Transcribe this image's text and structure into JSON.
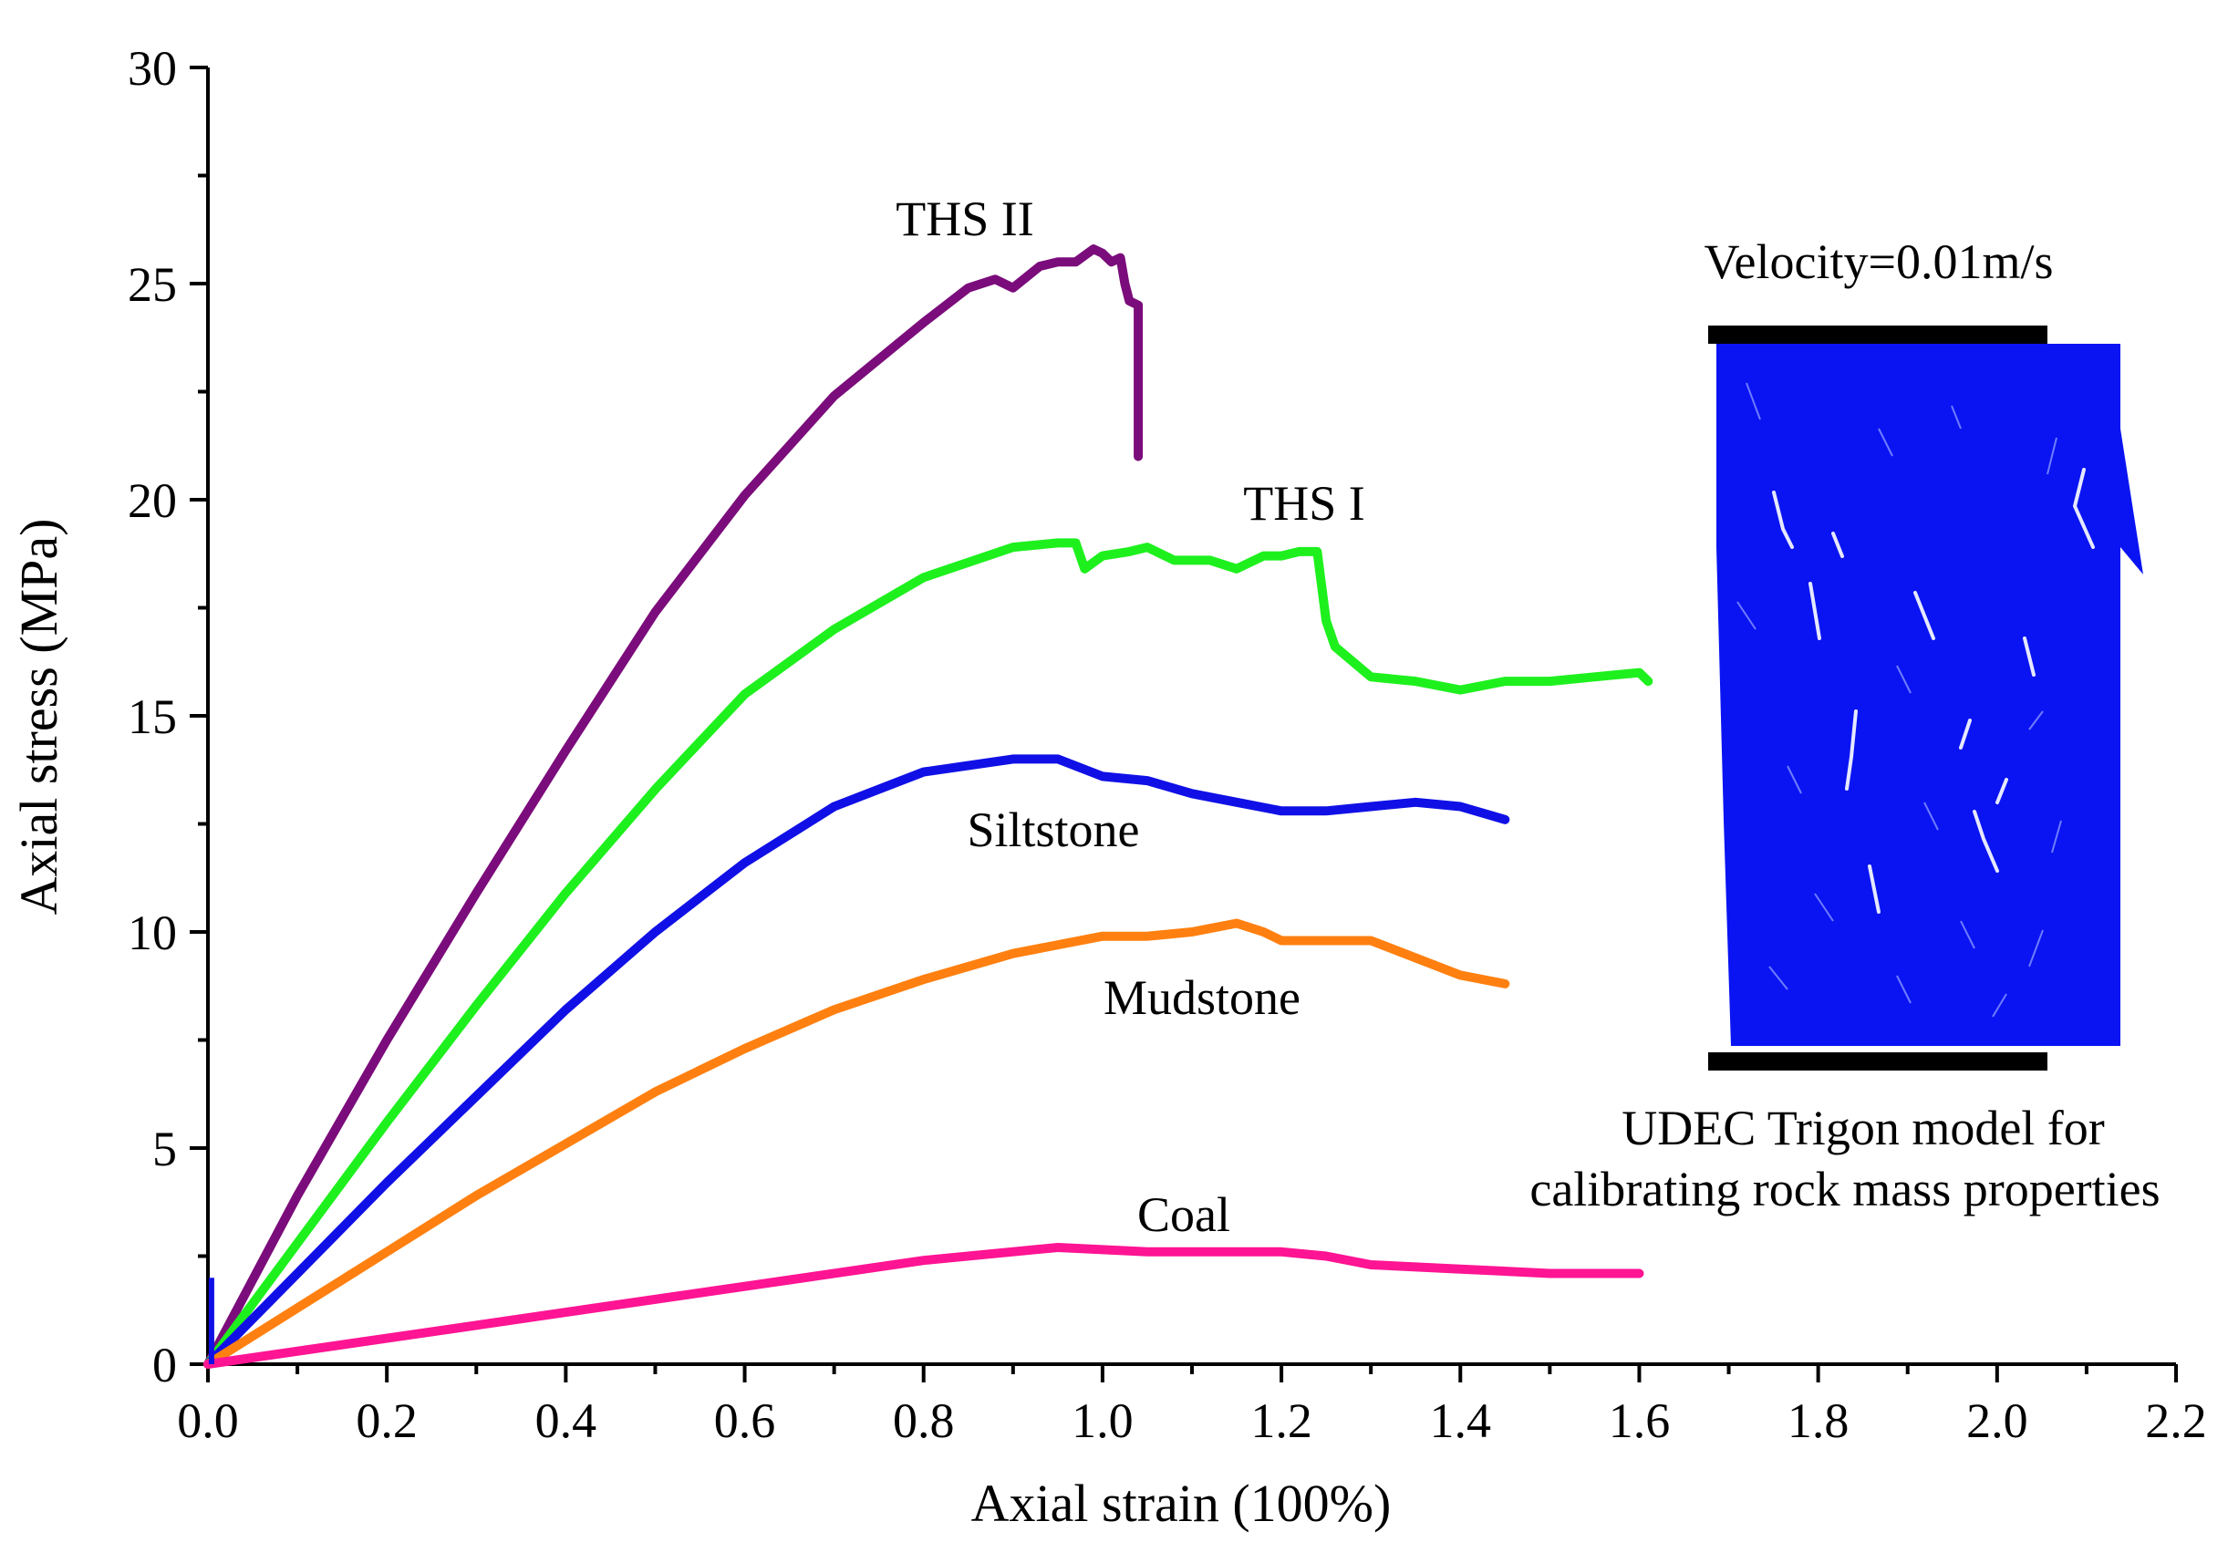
{
  "chart_data": {
    "type": "line",
    "xlabel": "Axial strain (100%)",
    "ylabel": "Axial stress  (MPa)",
    "xlim": [
      0,
      2.2
    ],
    "ylim": [
      0,
      30
    ],
    "x_ticks": [
      "0.0",
      "0.2",
      "0.4",
      "0.6",
      "0.8",
      "1.0",
      "1.2",
      "1.4",
      "1.6",
      "1.8",
      "2.0",
      "2.2"
    ],
    "y_ticks": [
      "0",
      "5",
      "10",
      "15",
      "20",
      "25",
      "30"
    ],
    "x_tick_values": [
      0,
      0.2,
      0.4,
      0.6,
      0.8,
      1.0,
      1.2,
      1.4,
      1.6,
      1.8,
      2.0,
      2.2
    ],
    "y_tick_values": [
      0,
      5,
      10,
      15,
      20,
      25,
      30
    ],
    "series": [
      {
        "name": "THS II",
        "color": "#7b0c7b",
        "x": [
          0,
          0.1,
          0.2,
          0.3,
          0.4,
          0.5,
          0.6,
          0.7,
          0.8,
          0.85,
          0.88,
          0.9,
          0.93,
          0.95,
          0.97,
          0.99,
          1.0,
          1.01,
          1.02,
          1.025,
          1.03,
          1.04,
          1.04
        ],
        "y": [
          0,
          3.9,
          7.5,
          10.9,
          14.2,
          17.4,
          20.1,
          22.4,
          24.1,
          24.9,
          25.1,
          24.9,
          25.4,
          25.5,
          25.5,
          25.8,
          25.7,
          25.5,
          25.6,
          25.0,
          24.6,
          24.5,
          21.0
        ]
      },
      {
        "name": "THS I",
        "color": "#1ef01e",
        "x": [
          0,
          0.1,
          0.2,
          0.3,
          0.4,
          0.5,
          0.6,
          0.7,
          0.8,
          0.9,
          0.95,
          0.97,
          0.98,
          1.0,
          1.03,
          1.05,
          1.08,
          1.12,
          1.15,
          1.18,
          1.2,
          1.22,
          1.24,
          1.25,
          1.26,
          1.3,
          1.35,
          1.4,
          1.45,
          1.5,
          1.55,
          1.6,
          1.61
        ],
        "y": [
          0,
          2.8,
          5.6,
          8.3,
          10.9,
          13.3,
          15.5,
          17.0,
          18.2,
          18.9,
          19.0,
          19.0,
          18.4,
          18.7,
          18.8,
          18.9,
          18.6,
          18.6,
          18.4,
          18.7,
          18.7,
          18.8,
          18.8,
          17.2,
          16.6,
          15.9,
          15.8,
          15.6,
          15.8,
          15.8,
          15.9,
          16.0,
          15.8
        ]
      },
      {
        "name": "Siltstone",
        "color": "#1010e6",
        "x": [
          0,
          0.1,
          0.2,
          0.3,
          0.4,
          0.5,
          0.6,
          0.7,
          0.8,
          0.9,
          0.95,
          1.0,
          1.05,
          1.1,
          1.15,
          1.2,
          1.25,
          1.3,
          1.35,
          1.4,
          1.45
        ],
        "y": [
          0,
          2.1,
          4.2,
          6.2,
          8.2,
          10.0,
          11.6,
          12.9,
          13.7,
          14.0,
          14.0,
          13.6,
          13.5,
          13.2,
          13.0,
          12.8,
          12.8,
          12.9,
          13.0,
          12.9,
          12.6
        ]
      },
      {
        "name": "Mudstone",
        "color": "#ff8010",
        "x": [
          0,
          0.1,
          0.2,
          0.3,
          0.4,
          0.5,
          0.6,
          0.7,
          0.8,
          0.9,
          1.0,
          1.05,
          1.1,
          1.15,
          1.18,
          1.2,
          1.25,
          1.3,
          1.35,
          1.4,
          1.45
        ],
        "y": [
          0,
          1.3,
          2.6,
          3.9,
          5.1,
          6.3,
          7.3,
          8.2,
          8.9,
          9.5,
          9.9,
          9.9,
          10.0,
          10.2,
          10.0,
          9.8,
          9.8,
          9.8,
          9.4,
          9.0,
          8.8
        ]
      },
      {
        "name": "Coal",
        "color": "#ff1493",
        "x": [
          0,
          0.2,
          0.4,
          0.6,
          0.8,
          0.95,
          1.05,
          1.1,
          1.2,
          1.25,
          1.3,
          1.4,
          1.5,
          1.6
        ],
        "y": [
          0,
          0.6,
          1.2,
          1.8,
          2.4,
          2.7,
          2.6,
          2.6,
          2.6,
          2.5,
          2.3,
          2.2,
          2.1,
          2.1
        ]
      }
    ],
    "annotations": {
      "velocity": "Velocity=0.01m/s",
      "model_caption_line1": "UDEC Trigon model for",
      "model_caption_line2": "calibrating rock mass properties"
    }
  }
}
